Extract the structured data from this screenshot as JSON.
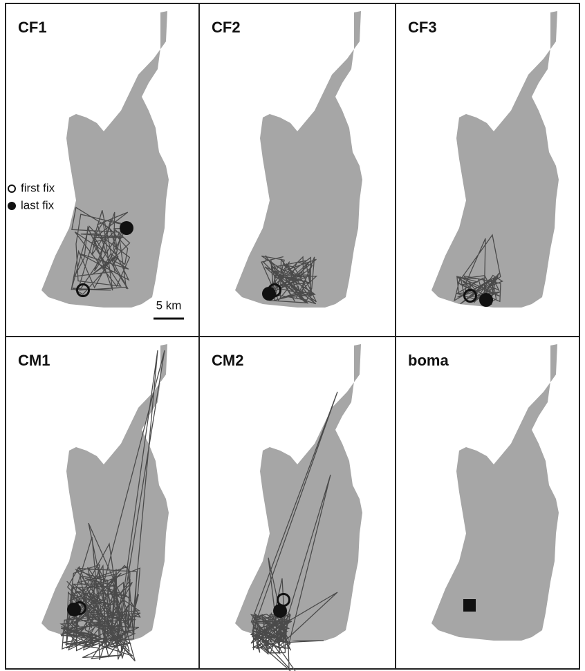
{
  "panels": [
    {
      "label": "CF1"
    },
    {
      "label": "CF2"
    },
    {
      "label": "CF3"
    },
    {
      "label": "CM1"
    },
    {
      "label": "CM2"
    },
    {
      "label": "boma"
    }
  ],
  "legend": {
    "first": "first fix",
    "last": "last fix"
  },
  "scale_bar": "5 km"
}
